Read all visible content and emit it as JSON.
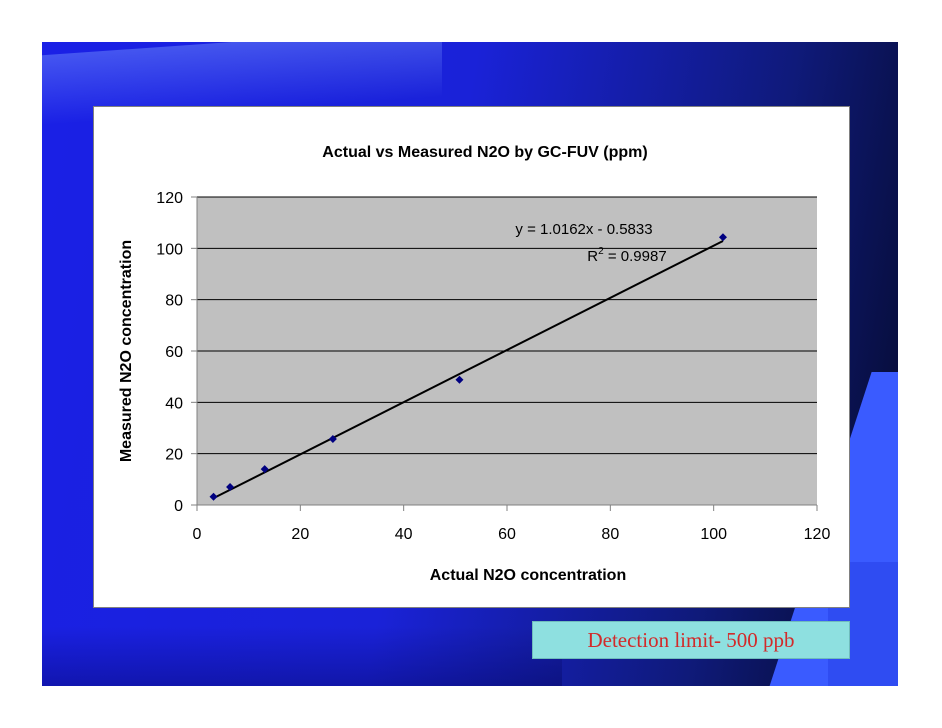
{
  "slide": {
    "caption": "Detection limit- 500 ppb",
    "colors": {
      "background": "#1a22d8",
      "plot_area": "#c0c0c0",
      "marker": "#000080",
      "caption_bg": "#8ee0e0",
      "caption_text": "#d22a2a"
    }
  },
  "chart_data": {
    "type": "scatter",
    "title": "Actual vs Measured N2O by GC-FUV (ppm)",
    "xlabel": "Actual N2O concentration",
    "ylabel": "Measured N2O concentration",
    "xlim": [
      0,
      120
    ],
    "ylim": [
      0,
      120
    ],
    "xticks": [
      0,
      20,
      40,
      60,
      80,
      100,
      120
    ],
    "yticks": [
      0,
      20,
      40,
      60,
      80,
      100,
      120
    ],
    "grid": "horizontal",
    "legend": "none",
    "series": [
      {
        "x": [
          3.2,
          6.4,
          13.1,
          26.3,
          50.8,
          101.8
        ],
        "y": [
          3.2,
          7.0,
          14.0,
          25.7,
          48.8,
          104.3
        ]
      }
    ],
    "trendline": {
      "slope": 1.0162,
      "intercept": -0.5833,
      "x_range": [
        3.2,
        101.8
      ],
      "equation": "y = 1.0162x - 0.5833",
      "r2_prefix": "R",
      "r2_sup": "2",
      "r2_value": " = 0.9987"
    }
  }
}
